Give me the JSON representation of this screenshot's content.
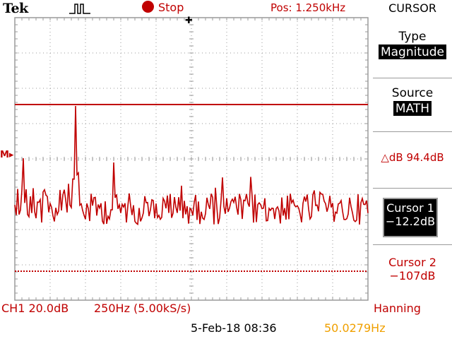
{
  "header": {
    "brand": "Tek",
    "trigger_icon": "pulse-trigger-icon",
    "run_state": "Stop",
    "position": "Pos: 1.250kHz"
  },
  "menu": {
    "title": "CURSOR",
    "type_label": "Type",
    "type_value": "Magnitude",
    "source_label": "Source",
    "source_value": "MATH",
    "delta": "△dB 94.4dB",
    "cursor1_label": "Cursor 1",
    "cursor1_value": "−12.2dB",
    "cursor2_label": "Cursor 2",
    "cursor2_value": "−107dB"
  },
  "display": {
    "ref_marker": "M▸",
    "trigger_marker": "✚"
  },
  "footer": {
    "channel_scale": "CH1 20.0dB",
    "freq_scale": "250Hz (5.00kS/s)",
    "window": "Hanning",
    "datetime": "5-Feb-18 08:36",
    "frequency_readout": "50.0279Hz"
  },
  "colors": {
    "trace": "#c00000",
    "frequency_readout": "#f0a000",
    "graticule": "#9a9a9a"
  }
}
